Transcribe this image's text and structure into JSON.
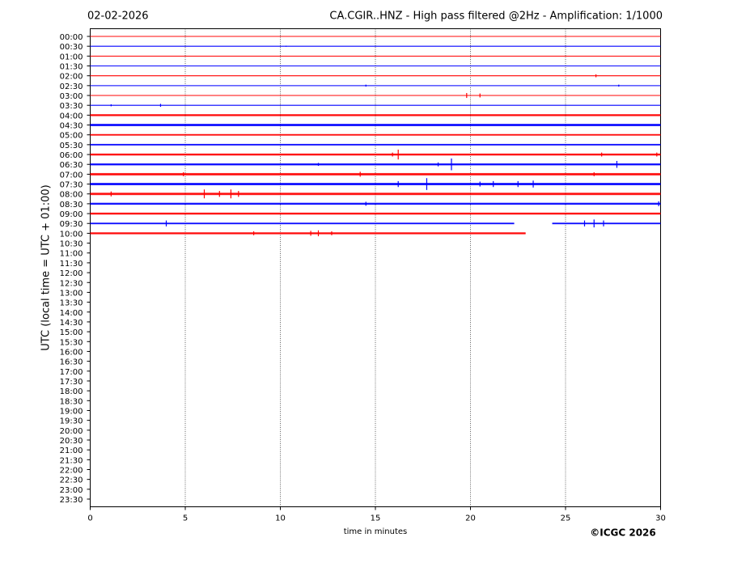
{
  "chart_data": {
    "type": "helicorder",
    "date": "02-02-2026",
    "title": "CA.CGIR..HNZ - High pass filtered @2Hz - Amplification: 1/1000",
    "ylabel": "UTC (local time = UTC + 01:00)",
    "xlabel": "time in minutes",
    "copyright": "©ICGC 2026",
    "xlim": [
      0,
      30
    ],
    "xticks": [
      0,
      5,
      10,
      15,
      20,
      25,
      30
    ],
    "grid": true,
    "categories": [
      "00:00",
      "00:30",
      "01:00",
      "01:30",
      "02:00",
      "02:30",
      "03:00",
      "03:30",
      "04:00",
      "04:30",
      "05:00",
      "05:30",
      "06:00",
      "06:30",
      "07:00",
      "07:30",
      "08:00",
      "08:30",
      "09:00",
      "09:30",
      "10:00",
      "10:30",
      "11:00",
      "11:30",
      "12:00",
      "12:30",
      "13:00",
      "13:30",
      "14:00",
      "14:30",
      "15:00",
      "15:30",
      "16:00",
      "16:30",
      "17:00",
      "17:30",
      "18:00",
      "18:30",
      "19:00",
      "19:30",
      "20:00",
      "20:30",
      "21:00",
      "21:30",
      "22:00",
      "22:30",
      "23:00",
      "23:30"
    ],
    "traces": [
      {
        "color": "#ff0000",
        "segments": [
          [
            0,
            30
          ]
        ],
        "noise": 0.02,
        "spikes": {
          "x": [],
          "amplitude": []
        }
      },
      {
        "color": "#0000ff",
        "segments": [
          [
            0,
            30
          ]
        ],
        "noise": 0.02,
        "spikes": {
          "x": [
            10.3
          ],
          "amplitude": [
            0.05
          ]
        }
      },
      {
        "color": "#ff0000",
        "segments": [
          [
            0,
            30
          ]
        ],
        "noise": 0.02,
        "spikes": {
          "x": [],
          "amplitude": []
        }
      },
      {
        "color": "#0000ff",
        "segments": [
          [
            0,
            30
          ]
        ],
        "noise": 0.02,
        "spikes": {
          "x": [],
          "amplitude": []
        }
      },
      {
        "color": "#ff0000",
        "segments": [
          [
            0,
            30
          ]
        ],
        "noise": 0.02,
        "spikes": {
          "x": [
            26.6
          ],
          "amplitude": [
            0.15
          ]
        }
      },
      {
        "color": "#0000ff",
        "segments": [
          [
            0,
            30
          ]
        ],
        "noise": 0.03,
        "spikes": {
          "x": [
            14.5,
            27.8
          ],
          "amplitude": [
            0.1,
            0.1
          ]
        }
      },
      {
        "color": "#ff0000",
        "segments": [
          [
            0,
            30
          ]
        ],
        "noise": 0.02,
        "spikes": {
          "x": [
            19.8,
            20.5
          ],
          "amplitude": [
            0.25,
            0.2
          ]
        }
      },
      {
        "color": "#0000ff",
        "segments": [
          [
            0,
            30
          ]
        ],
        "noise": 0.03,
        "spikes": {
          "x": [
            1.1,
            3.7
          ],
          "amplitude": [
            0.1,
            0.15
          ]
        }
      },
      {
        "color": "#ff0000",
        "segments": [
          [
            0,
            30
          ]
        ],
        "noise": 0.1,
        "spikes": {
          "x": [],
          "amplitude": []
        }
      },
      {
        "color": "#0000ff",
        "segments": [
          [
            0,
            30
          ]
        ],
        "noise": 0.12,
        "spikes": {
          "x": [],
          "amplitude": []
        }
      },
      {
        "color": "#ff0000",
        "segments": [
          [
            0,
            30
          ]
        ],
        "noise": 0.08,
        "spikes": {
          "x": [],
          "amplitude": []
        }
      },
      {
        "color": "#0000ff",
        "segments": [
          [
            0,
            30
          ]
        ],
        "noise": 0.08,
        "spikes": {
          "x": [],
          "amplitude": []
        }
      },
      {
        "color": "#ff0000",
        "segments": [
          [
            0,
            30
          ]
        ],
        "noise": 0.1,
        "spikes": {
          "x": [
            15.9,
            16.2,
            26.9,
            29.8
          ],
          "amplitude": [
            0.2,
            0.5,
            0.2,
            0.2
          ]
        }
      },
      {
        "color": "#0000ff",
        "segments": [
          [
            0,
            30
          ]
        ],
        "noise": 0.1,
        "spikes": {
          "x": [
            12.0,
            18.3,
            19.0,
            27.7
          ],
          "amplitude": [
            0.15,
            0.2,
            0.6,
            0.35
          ]
        }
      },
      {
        "color": "#ff0000",
        "segments": [
          [
            0,
            30
          ]
        ],
        "noise": 0.12,
        "spikes": {
          "x": [
            4.9,
            14.2,
            26.5
          ],
          "amplitude": [
            0.2,
            0.25,
            0.2
          ]
        }
      },
      {
        "color": "#0000ff",
        "segments": [
          [
            0,
            30
          ]
        ],
        "noise": 0.12,
        "spikes": {
          "x": [
            16.2,
            17.7,
            20.5,
            21.2,
            22.5,
            23.3
          ],
          "amplitude": [
            0.3,
            0.6,
            0.25,
            0.3,
            0.3,
            0.35
          ]
        }
      },
      {
        "color": "#ff0000",
        "segments": [
          [
            0,
            30
          ]
        ],
        "noise": 0.12,
        "spikes": {
          "x": [
            1.1,
            6.0,
            6.8,
            7.4,
            7.8
          ],
          "amplitude": [
            0.25,
            0.45,
            0.3,
            0.45,
            0.3
          ]
        }
      },
      {
        "color": "#0000ff",
        "segments": [
          [
            0,
            30
          ]
        ],
        "noise": 0.1,
        "spikes": {
          "x": [
            14.5,
            29.9
          ],
          "amplitude": [
            0.2,
            0.25
          ]
        }
      },
      {
        "color": "#ff0000",
        "segments": [
          [
            0,
            30
          ]
        ],
        "noise": 0.1,
        "spikes": {
          "x": [],
          "amplitude": []
        }
      },
      {
        "color": "#0000ff",
        "segments": [
          [
            0,
            22.3
          ],
          [
            24.3,
            30
          ]
        ],
        "noise": 0.08,
        "spikes": {
          "x": [
            4.0,
            26.0,
            26.5,
            27.0
          ],
          "amplitude": [
            0.3,
            0.3,
            0.4,
            0.3
          ]
        }
      },
      {
        "color": "#ff0000",
        "segments": [
          [
            0,
            22.9
          ]
        ],
        "noise": 0.1,
        "spikes": {
          "x": [
            8.6,
            11.6,
            12.0,
            12.7
          ],
          "amplitude": [
            0.2,
            0.25,
            0.3,
            0.2
          ]
        }
      }
    ]
  }
}
